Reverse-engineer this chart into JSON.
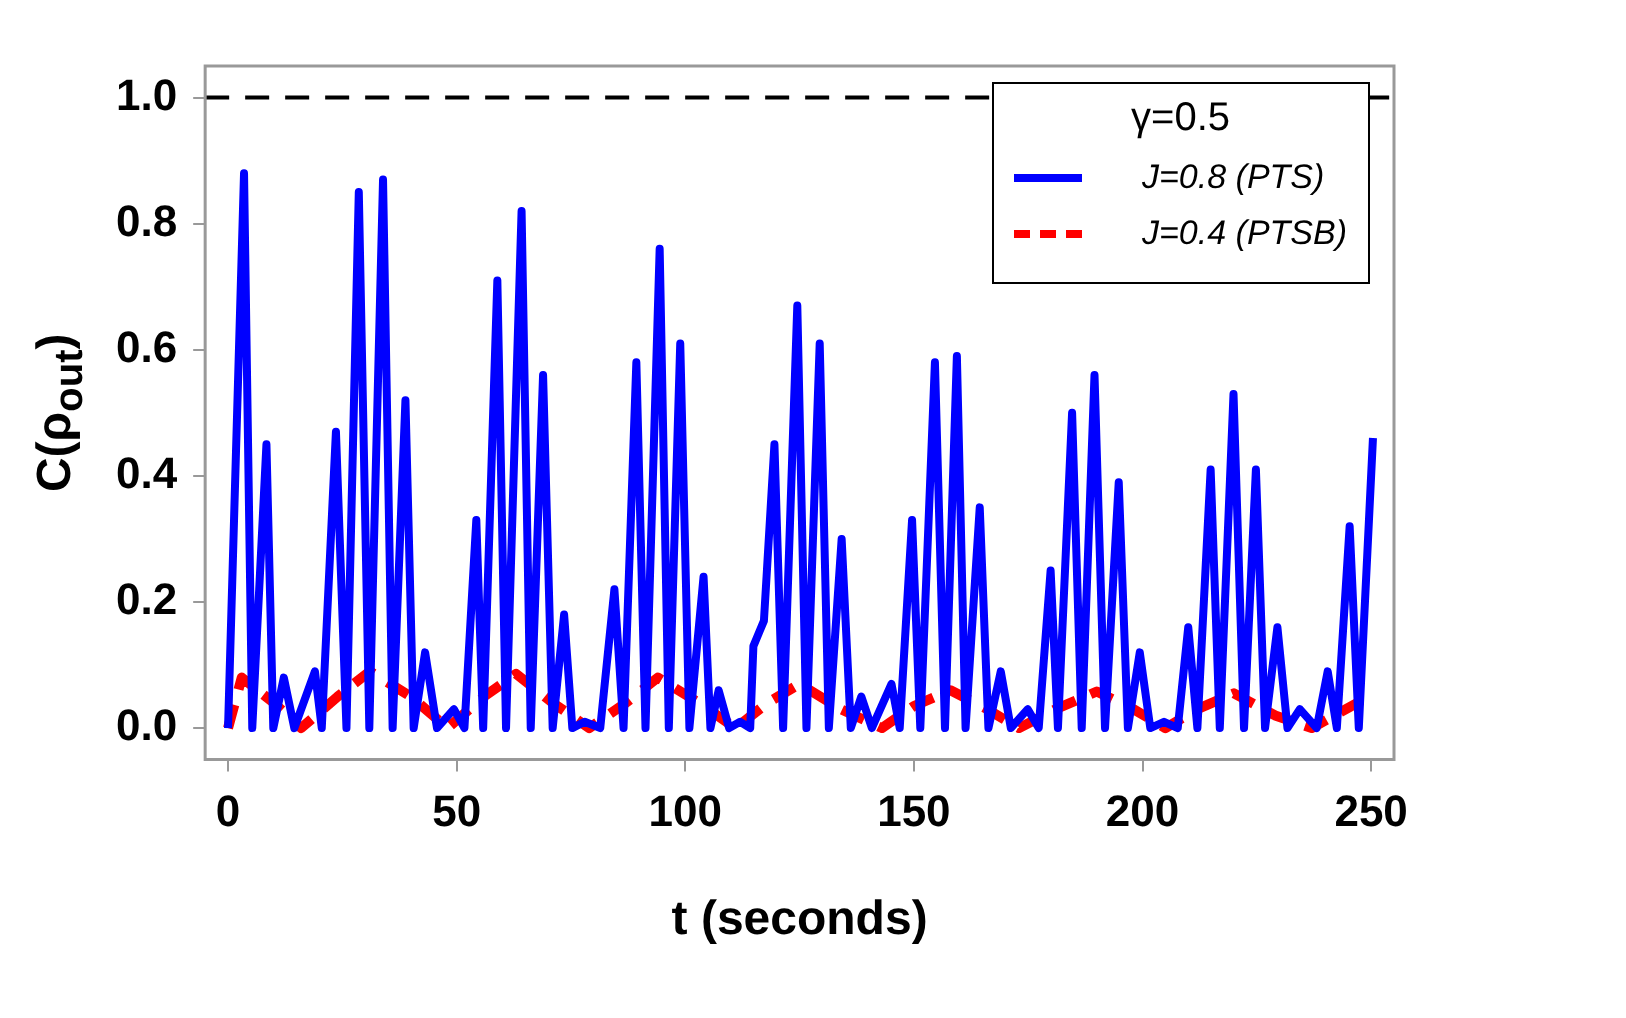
{
  "chart_data": {
    "type": "line",
    "xlabel": "t (seconds)",
    "ylabel": "C(ρ$_{out}$)",
    "legend_title": "γ=0.5",
    "legend": "top right",
    "grid": false,
    "marker": "none",
    "xlim": [
      -5,
      255
    ],
    "ylim": [
      -0.05,
      1.05
    ],
    "xticks": [
      0,
      50,
      100,
      150,
      200,
      250
    ],
    "yticks": [
      {
        "value": 0,
        "label": "0.0"
      },
      {
        "value": 0.2,
        "label": "0.2"
      },
      {
        "value": 0.4,
        "label": "0.4"
      },
      {
        "value": 0.6,
        "label": "0.6"
      },
      {
        "value": 0.8,
        "label": "0.8"
      },
      {
        "value": 1,
        "label": "1.0"
      }
    ],
    "ref_lines": [
      {
        "axis": "y",
        "value": 1,
        "label": null,
        "color": "#000000",
        "line_style": "dashed"
      }
    ],
    "series": [
      {
        "name": "J=0.8 (PTS)",
        "color": "#0000ff",
        "line_style": "solid",
        "x": [
          0,
          3.5,
          5.3,
          8.4,
          9.9,
          12.2,
          14.5,
          19,
          20.5,
          23.6,
          25.9,
          28.6,
          30.9,
          33.9,
          36,
          38.8,
          40.6,
          43.1,
          45.7,
          49.4,
          51.7,
          54.3,
          55.8,
          58.9,
          60.8,
          64.2,
          66.2,
          68.9,
          71,
          73.5,
          75.3,
          78,
          81.4,
          84.5,
          86.5,
          89.3,
          91.3,
          94.4,
          96.4,
          98.9,
          100.9,
          104,
          105.5,
          107.3,
          109.6,
          112,
          114.2,
          114.9,
          117.2,
          119.5,
          121.4,
          124.5,
          126.5,
          129.4,
          131.4,
          134.2,
          136.2,
          138.5,
          140.8,
          145.1,
          146.9,
          149.6,
          151.4,
          154.6,
          156.8,
          159.4,
          161.3,
          164.4,
          166.3,
          169,
          171.2,
          174.9,
          177.3,
          179.9,
          181.5,
          184.6,
          186.7,
          189.5,
          191.8,
          194.8,
          196.8,
          199.4,
          201.7,
          204.7,
          207.7,
          210,
          212,
          214.9,
          216.9,
          219.9,
          222.2,
          224.8,
          226.8,
          229.5,
          231.7,
          234.4,
          238.1,
          240.5,
          242.5,
          245.3,
          247.3,
          250.4
        ],
        "values": [
          0,
          0.88,
          0,
          0.45,
          0,
          0.08,
          0,
          0.09,
          0,
          0.47,
          0,
          0.85,
          0,
          0.87,
          0,
          0.52,
          0,
          0.12,
          0,
          0.03,
          0,
          0.33,
          0,
          0.71,
          0,
          0.82,
          0,
          0.56,
          0,
          0.18,
          0,
          0.01,
          0,
          0.22,
          0,
          0.58,
          0,
          0.76,
          0,
          0.61,
          0,
          0.24,
          0,
          0.06,
          0,
          0.01,
          0,
          0.13,
          0.17,
          0.45,
          0,
          0.67,
          0,
          0.61,
          0,
          0.3,
          0,
          0.05,
          0,
          0.07,
          0,
          0.33,
          0,
          0.58,
          0,
          0.59,
          0,
          0.35,
          0,
          0.09,
          0,
          0.03,
          0,
          0.25,
          0,
          0.5,
          0,
          0.56,
          0,
          0.39,
          0,
          0.12,
          0,
          0.01,
          0,
          0.16,
          0,
          0.41,
          0,
          0.53,
          0,
          0.41,
          0,
          0.16,
          0,
          0.03,
          0,
          0.09,
          0,
          0.32,
          0,
          0.46
        ]
      },
      {
        "name": "J=0.4 (PTSB)",
        "color": "#ff0000",
        "line_style": "dashed",
        "x": [
          0,
          3,
          10,
          16,
          24,
          31,
          40,
          48,
          56,
          63,
          71,
          79,
          87,
          94,
          103,
          111,
          118,
          125,
          134,
          143,
          150,
          158,
          166,
          173,
          181,
          190,
          198,
          205,
          212,
          220,
          229,
          237,
          248
        ],
        "values": [
          0,
          0.08,
          0.04,
          0,
          0.05,
          0.09,
          0.05,
          0,
          0.05,
          0.086,
          0.04,
          0,
          0.04,
          0.08,
          0.04,
          0,
          0.04,
          0.07,
          0.03,
          0,
          0.035,
          0.06,
          0.03,
          0,
          0.03,
          0.058,
          0.03,
          0,
          0.03,
          0.055,
          0.02,
          0,
          0.044
        ]
      }
    ]
  }
}
